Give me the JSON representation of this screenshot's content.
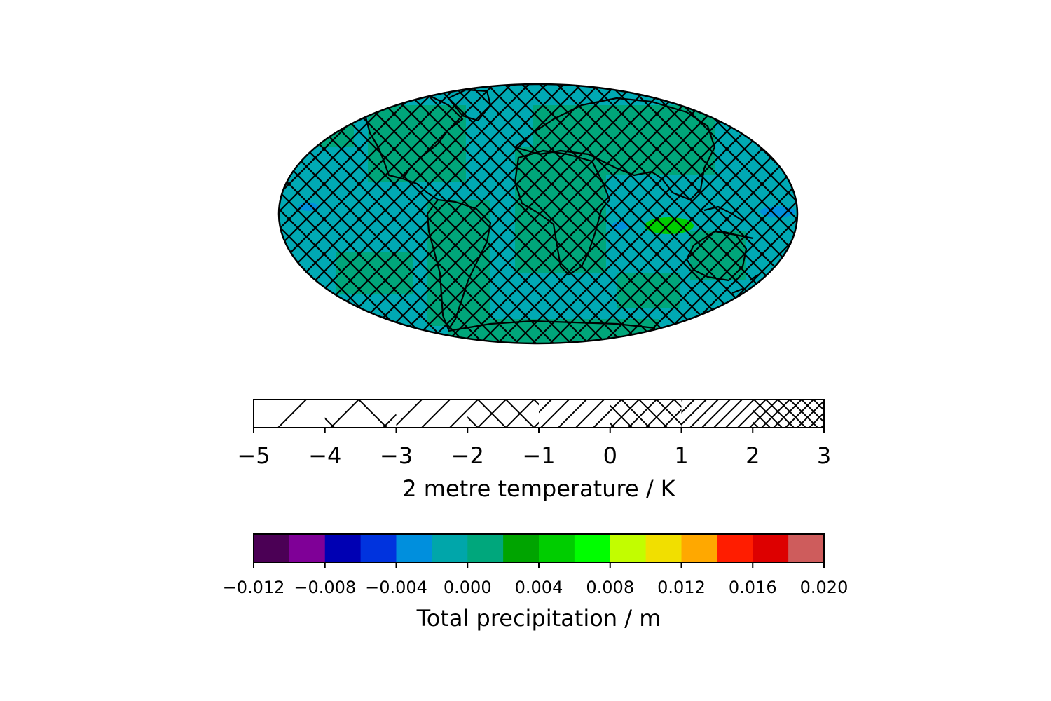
{
  "map": {
    "projection": "Mollweide",
    "ocean_color": "#00a9b4",
    "land_field_color": "#00a67a",
    "hatch": "crosshatch"
  },
  "hatch_colorbar": {
    "label": "2 metre temperature / K",
    "min": -5,
    "max": 3,
    "ticks": [
      "−5",
      "−4",
      "−3",
      "−2",
      "−1",
      "0",
      "1",
      "2",
      "3"
    ],
    "tick_values": [
      -5,
      -4,
      -3,
      -2,
      -1,
      0,
      1,
      2,
      3
    ],
    "bands": [
      {
        "from": -5,
        "to": -4,
        "hatch": "sparse-diagonal"
      },
      {
        "from": -4,
        "to": -3,
        "hatch": "sparse-cross"
      },
      {
        "from": -3,
        "to": -2,
        "hatch": "diagonal"
      },
      {
        "from": -2,
        "to": -1,
        "hatch": "cross"
      },
      {
        "from": -1,
        "to": 0,
        "hatch": "dense-diagonal"
      },
      {
        "from": 0,
        "to": 1,
        "hatch": "dense-cross"
      },
      {
        "from": 1,
        "to": 2,
        "hatch": "denser-diagonal"
      },
      {
        "from": 2,
        "to": 3,
        "hatch": "denser-cross"
      }
    ]
  },
  "color_colorbar": {
    "label": "Total precipitation / m",
    "min": -0.012,
    "max": 0.02,
    "ticks": [
      "−0.012",
      "−0.008",
      "−0.004",
      "0.000",
      "0.004",
      "0.008",
      "0.012",
      "0.016",
      "0.020"
    ],
    "tick_values": [
      -0.012,
      -0.008,
      -0.004,
      0.0,
      0.004,
      0.008,
      0.012,
      0.016,
      0.02
    ],
    "colors": [
      "#4b0055",
      "#7f0097",
      "#0000b3",
      "#0033de",
      "#008fdd",
      "#00a6aa",
      "#00a77c",
      "#00a400",
      "#00cd00",
      "#00fe00",
      "#c2fd00",
      "#f1df00",
      "#ffa800",
      "#ff1d00",
      "#dd0000",
      "#ce5c5c"
    ]
  },
  "chart_data": {
    "type": "heatmap",
    "title": "",
    "colorbars": [
      {
        "label": "2 metre temperature / K",
        "range": [
          -5,
          3
        ],
        "encoding": "hatching"
      },
      {
        "label": "Total precipitation / m",
        "range": [
          -0.012,
          0.02
        ],
        "encoding": "color"
      }
    ]
  }
}
